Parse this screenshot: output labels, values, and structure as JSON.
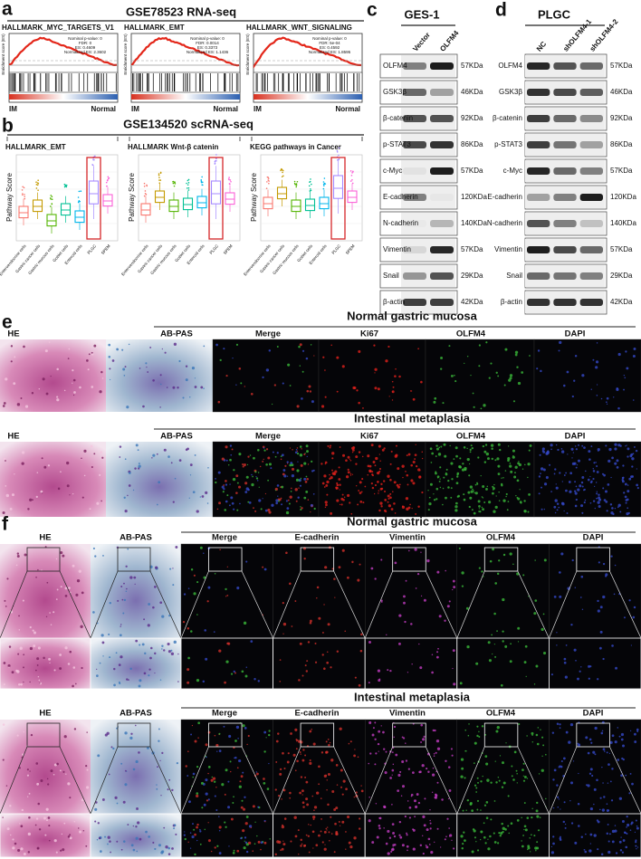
{
  "panel_a": {
    "label": "a",
    "title": "GSE78523 RNA-seq",
    "y_label": "Enrichment score (ES)",
    "left_label": "IM",
    "right_label": "Normal",
    "plots": [
      {
        "title": "HALLMARK_MYC_TARGETS_V1",
        "stats": [
          "Nominal p-value: 0",
          "FDR: 0",
          "ES: 0.4609",
          "Normalized ES: 2.3602"
        ]
      },
      {
        "title": "HALLMARK_EMT",
        "stats": [
          "Nominal p-value: 0",
          "FDR: 0.0014",
          "ES: 0.3373",
          "Normalized ES: 1.1436"
        ]
      },
      {
        "title": "HALLMARK_WNT_SIGNALING",
        "stats": [
          "Nominal p-value: 0",
          "FDR: 5e-04",
          "ES: 0.4592",
          "Normalized ES: 1.8595"
        ]
      }
    ]
  },
  "panel_b": {
    "label": "b",
    "title": "GSE134520 scRNA-seq",
    "y_label": "Pathway Score",
    "categories": [
      "Enteroendocrine cells",
      "Gastric cancer cells",
      "Gastric mucous cells",
      "Goblet cells",
      "Enteroid cells",
      "PLGC",
      "SPEM"
    ],
    "colors": [
      "#f8766d",
      "#c49a00",
      "#53b400",
      "#00c094",
      "#00b6eb",
      "#a58aff",
      "#fb61d7"
    ],
    "label_colors": [
      "#111111",
      "#111111",
      "#111111",
      "#111111",
      "#111111",
      "#d62728",
      "#111111"
    ],
    "plots": [
      {
        "title": "HALLMARK_EMT"
      },
      {
        "title": "HALLMARK Wnt-β catenin"
      },
      {
        "title": "KEGG pathways in Cancer"
      }
    ]
  },
  "panel_c": {
    "label": "c",
    "cell_line": "GES-1",
    "lanes": [
      "Vector",
      "OLFM4"
    ],
    "rows": [
      {
        "protein": "OLFM4",
        "size": "57KDa"
      },
      {
        "protein": "GSK3β",
        "size": "46KDa"
      },
      {
        "protein": "β-catenin",
        "size": "92KDa"
      },
      {
        "protein": "p-STAT3",
        "size": "86KDa"
      },
      {
        "protein": "c-Myc",
        "size": "57KDa"
      },
      {
        "protein": "E-cadherin",
        "size": "120KDa"
      },
      {
        "protein": "N-cadherin",
        "size": "140KDa"
      },
      {
        "protein": "Vimentin",
        "size": "57KDa"
      },
      {
        "protein": "Snail",
        "size": "29KDa"
      },
      {
        "protein": "β-actin",
        "size": "42KDa"
      }
    ]
  },
  "panel_d": {
    "label": "d",
    "cell_line": "PLGC",
    "lanes": [
      "NC",
      "shOLFM4-1",
      "shOLFM4-2"
    ],
    "rows": [
      {
        "protein": "OLFM4",
        "size": "57KDa"
      },
      {
        "protein": "GSK3β",
        "size": "46KDa"
      },
      {
        "protein": "β-catenin",
        "size": "92KDa"
      },
      {
        "protein": "p-STAT3",
        "size": "86KDa"
      },
      {
        "protein": "c-Myc",
        "size": "57KDa"
      },
      {
        "protein": "E-cadherin",
        "size": "120KDa"
      },
      {
        "protein": "N-cadherin",
        "size": "140KDa"
      },
      {
        "protein": "Vimentin",
        "size": "57KDa"
      },
      {
        "protein": "Snail",
        "size": "29KDa"
      },
      {
        "protein": "β-actin",
        "size": "42KDa"
      }
    ]
  },
  "panel_e": {
    "label": "e",
    "sections": [
      {
        "title": "Normal gastric mucosa",
        "columns": [
          "HE",
          "AB-PAS",
          "Merge",
          "Ki67",
          "OLFM4",
          "DAPI"
        ]
      },
      {
        "title": "Intestinal metaplasia",
        "columns": [
          "HE",
          "AB-PAS",
          "Merge",
          "Ki67",
          "OLFM4",
          "DAPI"
        ]
      }
    ],
    "column_colors": [
      "#111111",
      "#111111",
      "#111111",
      "#e0201b",
      "#35b534",
      "#2b5fbf"
    ]
  },
  "panel_f": {
    "label": "f",
    "sections": [
      {
        "title": "Normal gastric mucosa",
        "columns": [
          "HE",
          "AB-PAS",
          "Merge",
          "E-cadherin",
          "Vimentin",
          "OLFM4",
          "DAPI"
        ]
      },
      {
        "title": "Intestinal metaplasia",
        "columns": [
          "HE",
          "AB-PAS",
          "Merge",
          "E-cadherin",
          "Vimentin",
          "OLFM4",
          "DAPI"
        ]
      }
    ],
    "column_colors": [
      "#111111",
      "#111111",
      "#111111",
      "#e0201b",
      "#c03cc0",
      "#35b534",
      "#2b5fbf"
    ]
  }
}
